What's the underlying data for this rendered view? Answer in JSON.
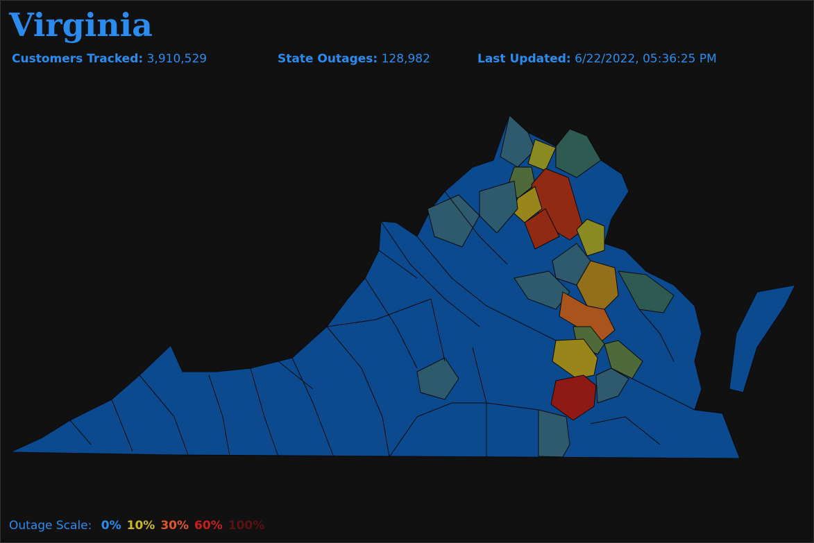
{
  "header": {
    "title": "Virginia"
  },
  "stats": [
    {
      "label": "Customers Tracked:",
      "value": "3,910,529"
    },
    {
      "label": "State Outages:",
      "value": "128,982"
    },
    {
      "label": "Last Updated:",
      "value": "6/22/2022, 05:36:25 PM"
    }
  ],
  "legend": {
    "label": "Outage Scale:",
    "items": [
      {
        "text": "0%",
        "color": "#2b8cf0"
      },
      {
        "text": "10%",
        "color": "#c9b827"
      },
      {
        "text": "30%",
        "color": "#e0562a"
      },
      {
        "text": "60%",
        "color": "#c81e1e"
      },
      {
        "text": "100%",
        "color": "#5a1212"
      }
    ]
  }
}
